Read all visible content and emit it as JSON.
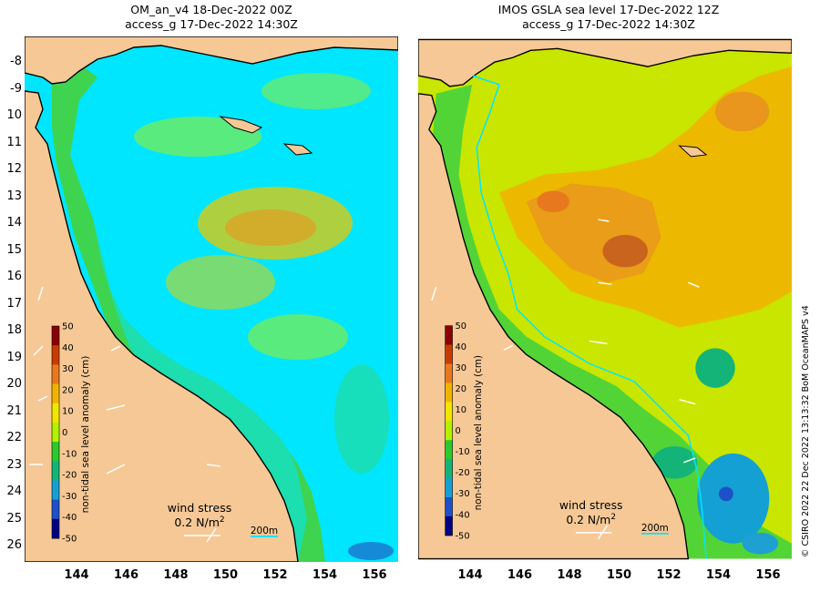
{
  "panels": [
    {
      "title_line1": "OM_an_v4  18-Dec-2022 00Z",
      "title_line2": "access_g 17-Dec-2022 14:30Z",
      "wind_label": "wind stress",
      "wind_value": "0.2 N/m",
      "wind_exp": "2",
      "scale_label": "200m"
    },
    {
      "title_line1": "IMOS GSLA sea level  17-Dec-2022 12Z",
      "title_line2": "access_g 17-Dec-2022 14:30Z",
      "wind_label": "wind stress",
      "wind_value": "0.2 N/m",
      "wind_exp": "2",
      "scale_label": "200m"
    }
  ],
  "lat_labels": [
    "-8",
    "-9",
    "10",
    "11",
    "12",
    "13",
    "14",
    "15",
    "16",
    "17",
    "18",
    "19",
    "20",
    "21",
    "22",
    "23",
    "24",
    "25",
    "26"
  ],
  "lon_labels": [
    "144",
    "146",
    "148",
    "150",
    "152",
    "154",
    "156"
  ],
  "colorbar": {
    "label": "non-tidal sea level anomaly (cm)",
    "ticks": [
      "50",
      "40",
      "30",
      "20",
      "10",
      "0",
      "-10",
      "-20",
      "-30",
      "-40",
      "-50"
    ],
    "colors": [
      "#8b0000",
      "#c83c00",
      "#e8781e",
      "#f0b400",
      "#f0e600",
      "#b4f000",
      "#2dc82d",
      "#14b478",
      "#14a0d2",
      "#1e50c8",
      "#000080"
    ]
  },
  "credit": "© CSIRO 2022   22 Dec 2022 13:13:32 BoM OceanMAPS v4",
  "colors": {
    "land": "#f5c896",
    "background_ocean": "#00e6ff",
    "coast": "#000000"
  }
}
